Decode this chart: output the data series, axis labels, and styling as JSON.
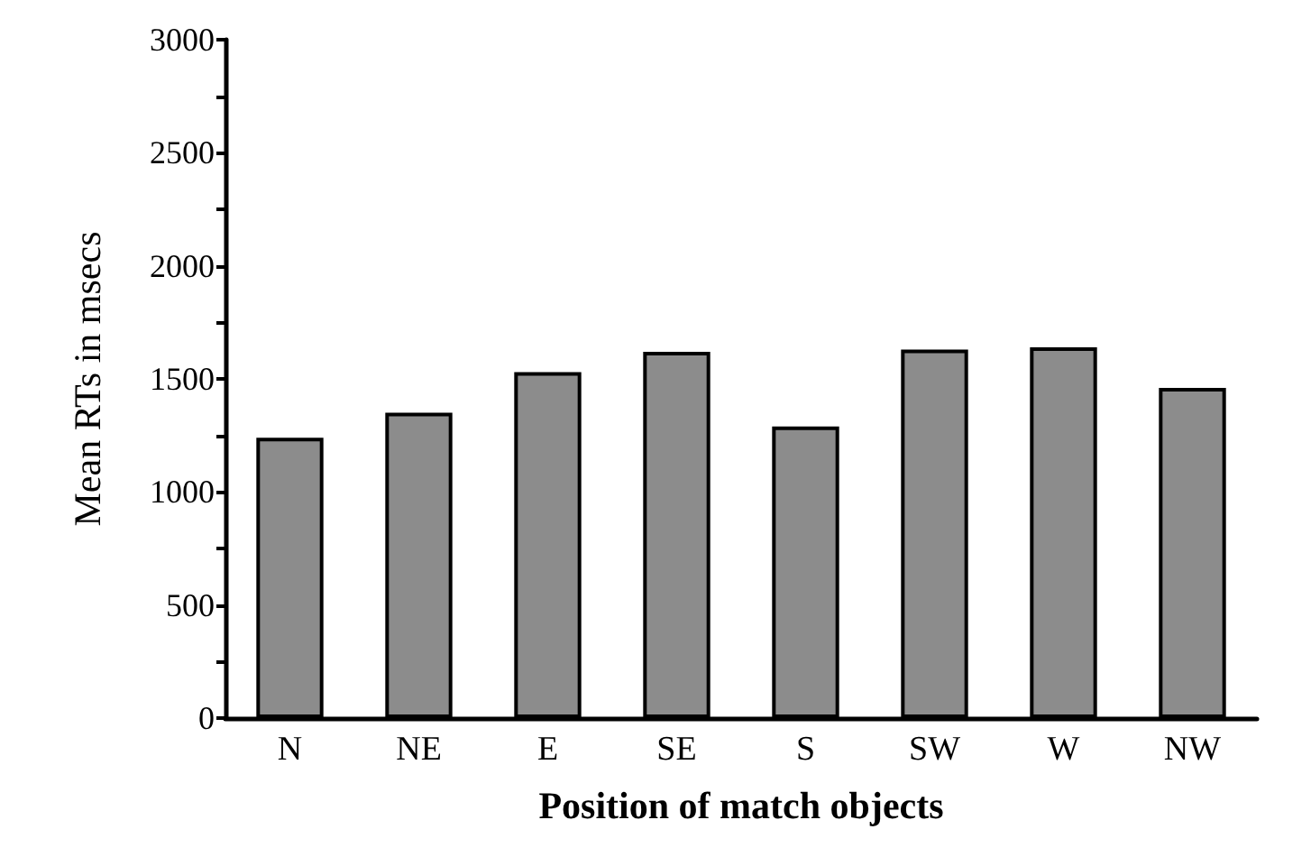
{
  "chart_data": {
    "type": "bar",
    "xlabel": "Position of match objects",
    "ylabel": "Mean RTs in msecs",
    "categories": [
      "N",
      "NE",
      "E",
      "SE",
      "S",
      "SW",
      "W",
      "NW"
    ],
    "values": [
      1240,
      1350,
      1530,
      1620,
      1290,
      1630,
      1640,
      1460
    ],
    "color": "#8c8c8c",
    "ylim": [
      0,
      3000
    ],
    "yticks": [
      0,
      {
        "value": 250,
        "label": null
      },
      500,
      {
        "value": 750,
        "label": null
      },
      1000,
      {
        "value": 1250,
        "label": null
      },
      1500,
      {
        "value": 1750,
        "label": null
      },
      2000,
      {
        "value": 2250,
        "label": null
      },
      2500,
      {
        "value": 2750,
        "label": null
      },
      3000
    ],
    "grid": false
  }
}
